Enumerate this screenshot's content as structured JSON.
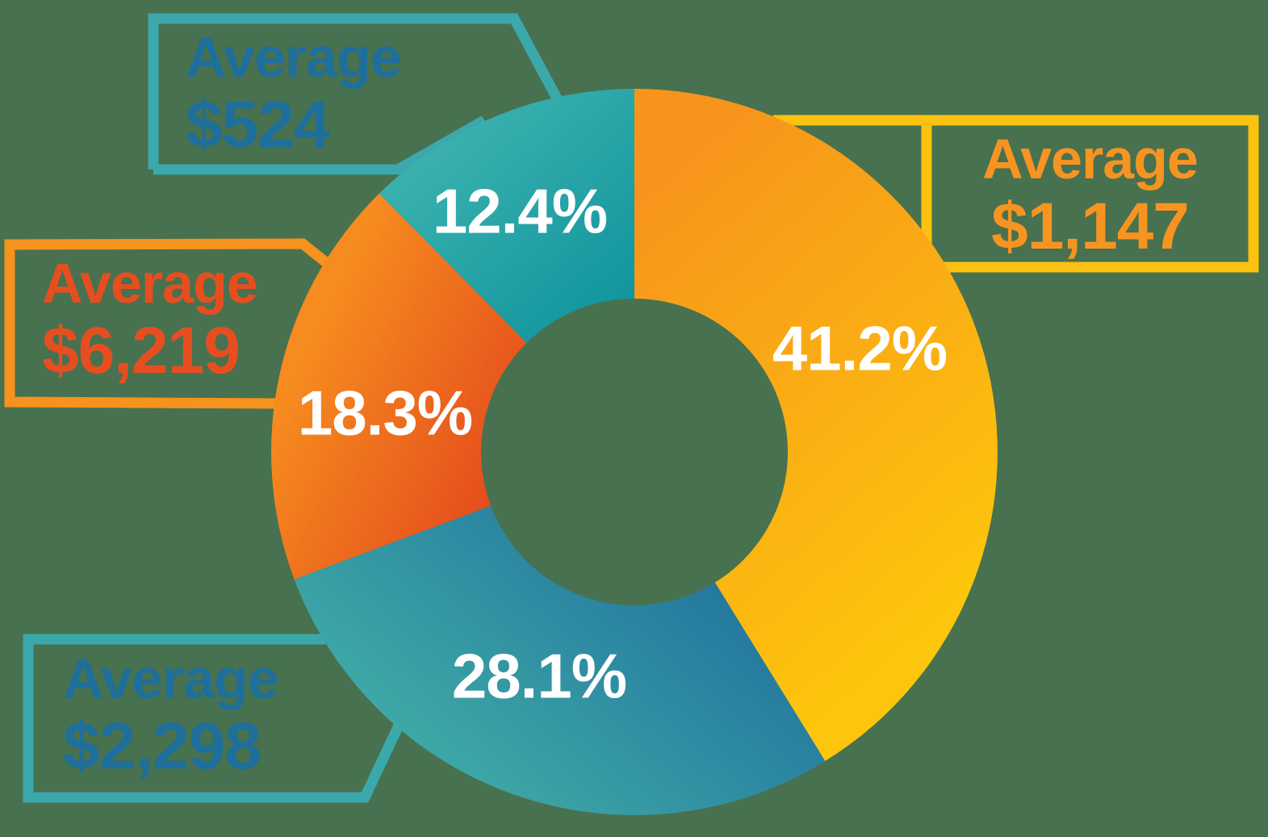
{
  "background_color": "#48714F",
  "percent_text_color": "#FFFFFF",
  "chart_data": {
    "type": "pie",
    "variant": "donut",
    "title": "",
    "start_angle_deg": 0,
    "direction": "clockwise",
    "legend_position": "callouts",
    "segments": [
      {
        "label": "41.2%",
        "percent": 41.2,
        "average_label": "Average",
        "average_value": "$1,147",
        "gradient": [
          "#F7941C",
          "#FDC60C"
        ]
      },
      {
        "label": "28.1%",
        "percent": 28.1,
        "average_label": "Average",
        "average_value": "$2,298",
        "gradient": [
          "#1E6D9D",
          "#3FAAA6"
        ]
      },
      {
        "label": "18.3%",
        "percent": 18.3,
        "average_label": "Average",
        "average_value": "$6,219",
        "gradient": [
          "#F68C1F",
          "#E44B1C"
        ]
      },
      {
        "label": "12.4%",
        "percent": 12.4,
        "average_label": "Average",
        "average_value": "$524",
        "gradient": [
          "#41B5B1",
          "#0E939C"
        ]
      }
    ]
  },
  "callouts": [
    {
      "heading": "Average",
      "value": "$1,147",
      "border_color": "#FDC110",
      "text_color": "#F79421"
    },
    {
      "heading": "Average",
      "value": "$2,298",
      "border_color": "#3BA8AB",
      "text_color": "#1E6F9B"
    },
    {
      "heading": "Average",
      "value": "$6,219",
      "border_color": "#F6921E",
      "text_color": "#E74E1F"
    },
    {
      "heading": "Average",
      "value": "$524",
      "border_color": "#3BA8AB",
      "text_color": "#1E6F9B"
    }
  ]
}
